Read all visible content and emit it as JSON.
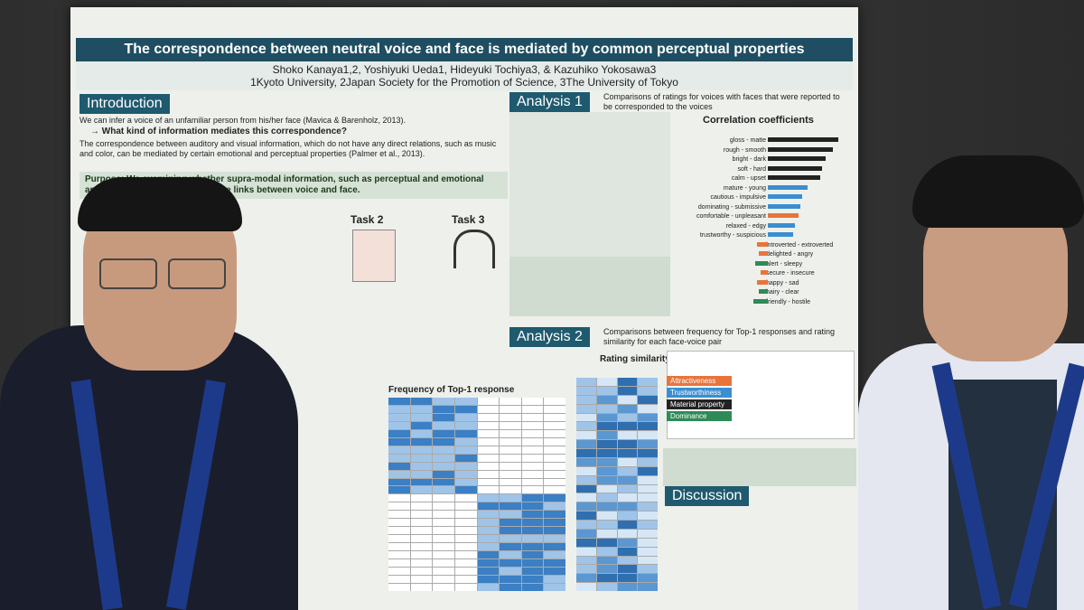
{
  "poster": {
    "title": "The correspondence between neutral voice and face is mediated by common perceptual properties",
    "authors": "Shoko Kanaya1,2, Yoshiyuki Ueda1, Hideyuki Tochiya3, & Kazuhiko Yokosawa3",
    "affiliations": "1Kyoto University, 2Japan Society for the Promotion of Science, 3The University of Tokyo",
    "intro_head": "Introduction",
    "intro_line1": "We can infer a voice of an unfamiliar person from his/her face (Mavica & Barenholz, 2013).",
    "intro_line2": "→ What kind of information mediates this correspondence?",
    "intro_line3": "The correspondence between auditory and visual information, which do not have any direct relations, such as music and color, can be mediated by certain emotional and perceptual properties (Palmer et al., 2013).",
    "purpose": "Purpose: We examining whether supra-modal information, such as perceptual and emotional and personality traits can mediate links between voice and face.",
    "task2": "Task 2",
    "task3": "Task 3",
    "analysis1_head": "Analysis 1",
    "analysis1_desc": "Comparisons of ratings for voices with faces that were reported to be corresponded to the voices",
    "corr_title": "Correlation coefficients",
    "analysis2_head": "Analysis 2",
    "analysis2_desc": "Comparisons between frequency for Top-1 responses and rating similarity for each face-voice pair",
    "freq_title": "Frequency of Top-1 response",
    "rating_sim": "Rating similarity",
    "discussion_head": "Discussion",
    "legend_items": [
      "Attractiveness",
      "Trustworthiness",
      "Material property",
      "Dominance"
    ],
    "bipolar": [
      "gloss - matte",
      "rough - smooth",
      "bright - dark",
      "soft - hard",
      "calm - upset",
      "mature - young",
      "cautious - impulsive",
      "dominating - submissive",
      "comfortable - unpleasant",
      "relaxed - edgy",
      "trustworthy - suspicious",
      "introverted - extroverted",
      "delighted - angry",
      "alert - sleepy",
      "secure - insecure",
      "happy - sad",
      "hairy - clear",
      "friendly - hostile"
    ],
    "colors": {
      "poster_head": "#1f4e62",
      "accent_orange": "#e8743b",
      "accent_blue": "#3b8ed0",
      "green_box": "#cfdccf"
    }
  }
}
